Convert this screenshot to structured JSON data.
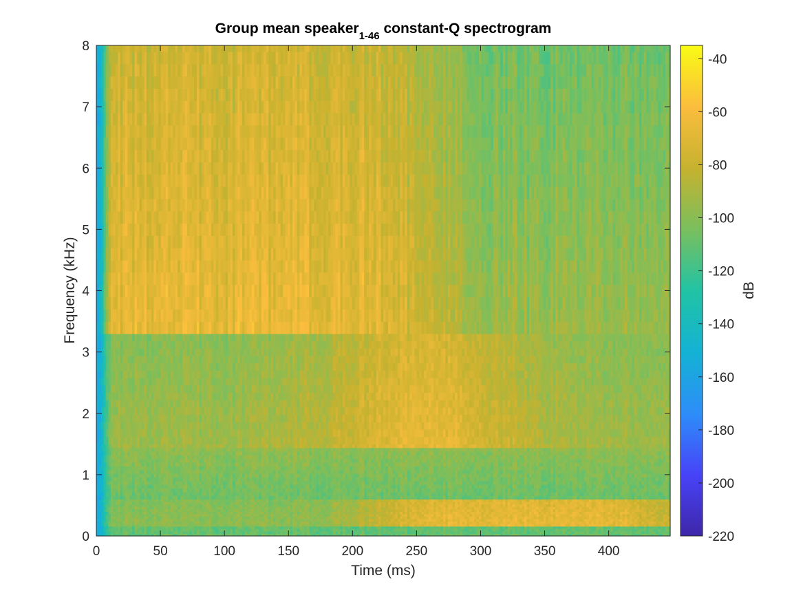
{
  "chart_data": {
    "type": "heatmap",
    "title": {
      "prefix": "Group mean speaker",
      "subscript": "1-46",
      "suffix": " constant-Q spectrogram"
    },
    "xlabel": "Time (ms)",
    "ylabel": "Frequency (kHz)",
    "colorbar_label": "dB",
    "xlim": [
      0,
      448
    ],
    "ylim": [
      0,
      8
    ],
    "clim": [
      -220,
      -35
    ],
    "x_ticks": [
      0,
      50,
      100,
      150,
      200,
      250,
      300,
      350,
      400
    ],
    "y_ticks": [
      0,
      1,
      2,
      3,
      4,
      5,
      6,
      7,
      8
    ],
    "colorbar_ticks": [
      -40,
      -60,
      -80,
      -100,
      -120,
      -140,
      -160,
      -180,
      -200,
      -220
    ],
    "colormap": "parula",
    "colormap_stops": [
      "#3e26a8",
      "#4743f8",
      "#2d8ef9",
      "#14b2d4",
      "#21c3a4",
      "#7abf5d",
      "#c6b22f",
      "#fbbd3d",
      "#f9fb15"
    ],
    "grid": false,
    "regions_approx_dB": [
      {
        "time_ms": [
          0,
          10
        ],
        "freq_khz": [
          0,
          8
        ],
        "level": -160
      },
      {
        "time_ms": [
          30,
          220
        ],
        "freq_khz": [
          3.3,
          8
        ],
        "level": -70
      },
      {
        "time_ms": [
          220,
          448
        ],
        "freq_khz": [
          3.3,
          8
        ],
        "level": -100
      },
      {
        "time_ms": [
          180,
          330
        ],
        "freq_khz": [
          1.5,
          3
        ],
        "level": -70
      },
      {
        "time_ms": [
          230,
          448
        ],
        "freq_khz": [
          0.2,
          0.6
        ],
        "level": -70
      },
      {
        "time_ms": [
          0,
          448
        ],
        "freq_khz": [
          0.6,
          1.4
        ],
        "level": -110
      },
      {
        "time_ms": [
          0,
          448
        ],
        "freq_khz": [
          0,
          0.15
        ],
        "level": -110
      }
    ]
  }
}
